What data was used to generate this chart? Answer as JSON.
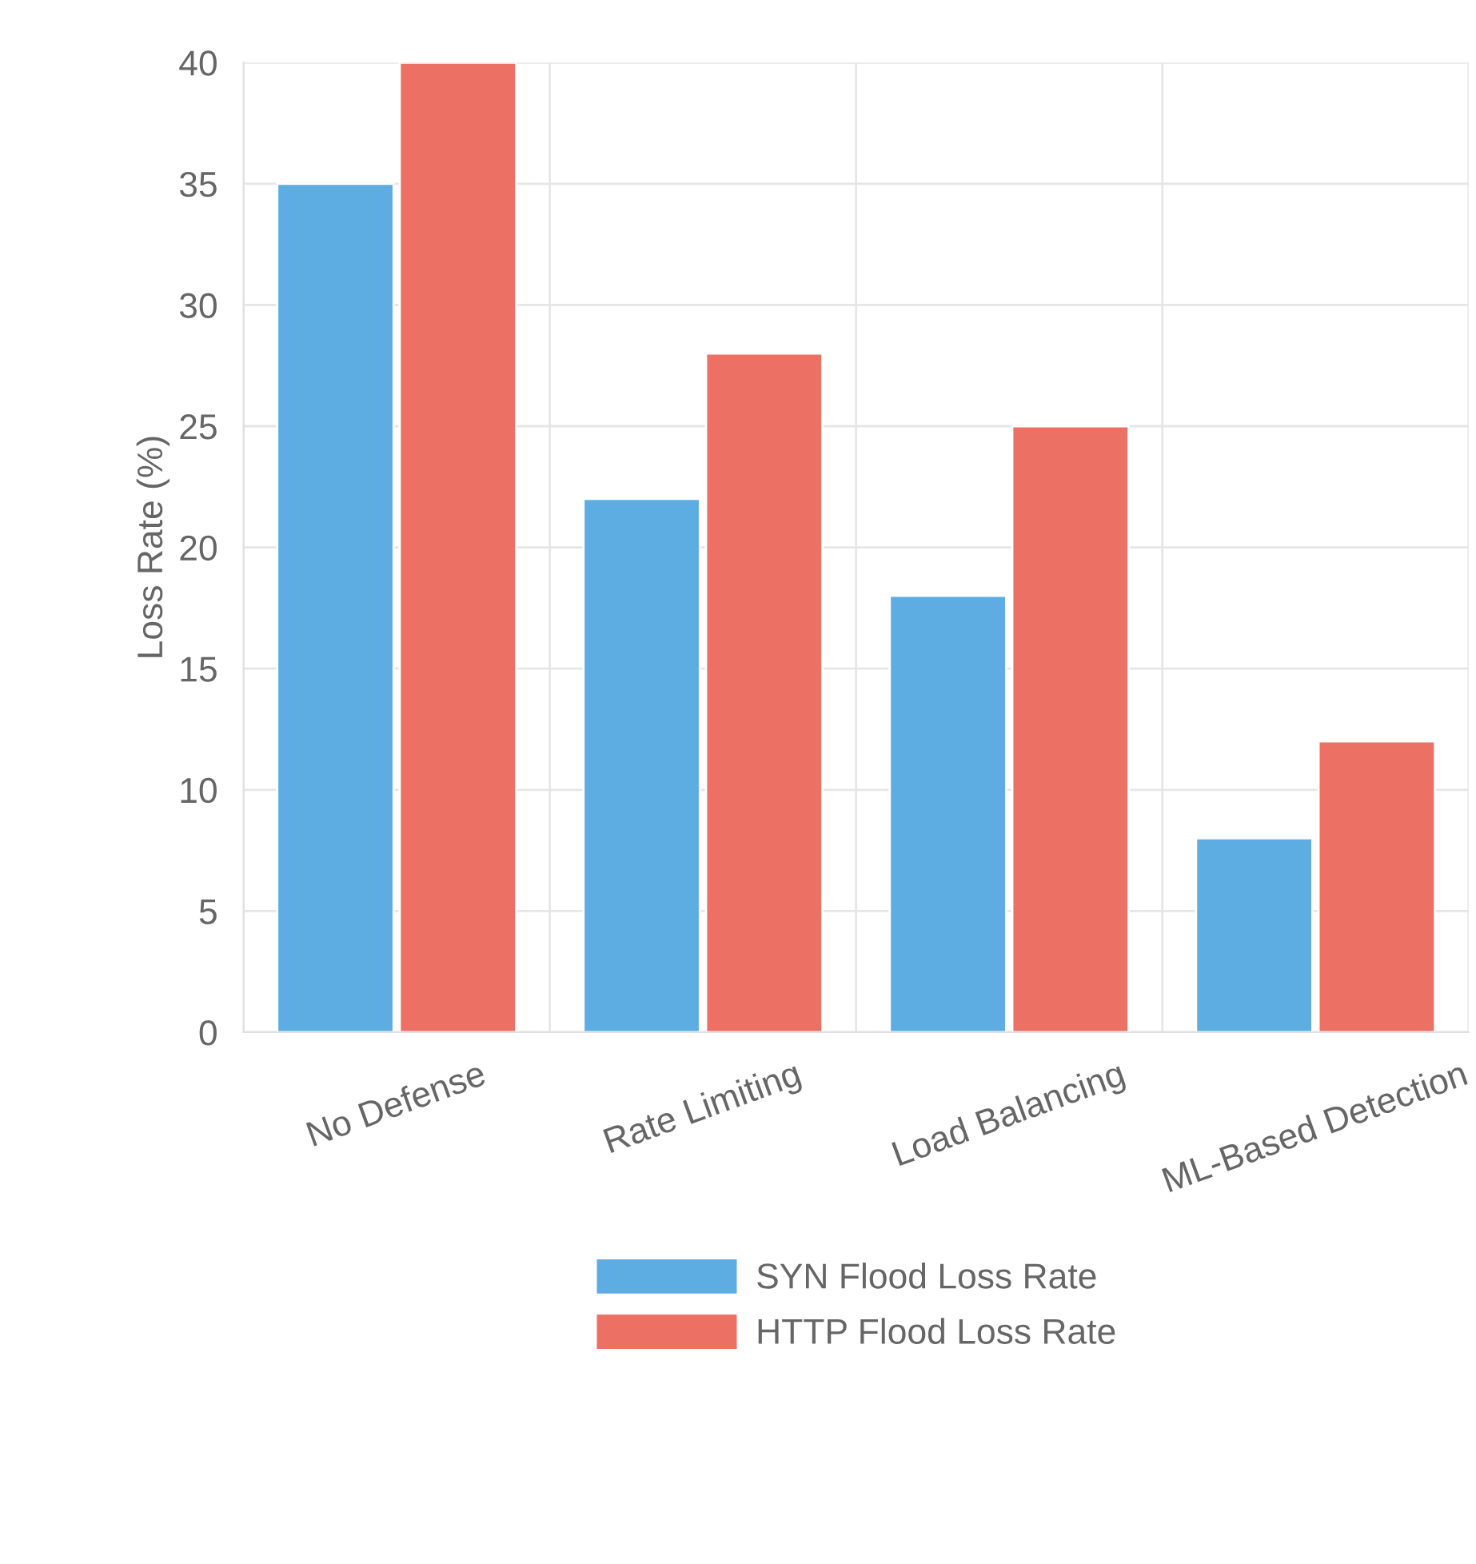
{
  "chart_data": {
    "type": "bar",
    "ylabel": "Loss Rate (%)",
    "categories": [
      "No Defense",
      "Rate Limiting",
      "Load Balancing",
      "ML-Based Detection"
    ],
    "series": [
      {
        "name": "SYN Flood Loss Rate",
        "color": "#5dade2",
        "values": [
          35,
          22,
          18,
          8
        ]
      },
      {
        "name": "HTTP Flood Loss Rate",
        "color": "#ec7063",
        "values": [
          40,
          28,
          25,
          12
        ]
      }
    ],
    "ylim": [
      0,
      40
    ],
    "yticks": [
      0,
      5,
      10,
      15,
      20,
      25,
      30,
      35,
      40
    ],
    "grid": true,
    "legend": "bottom"
  }
}
